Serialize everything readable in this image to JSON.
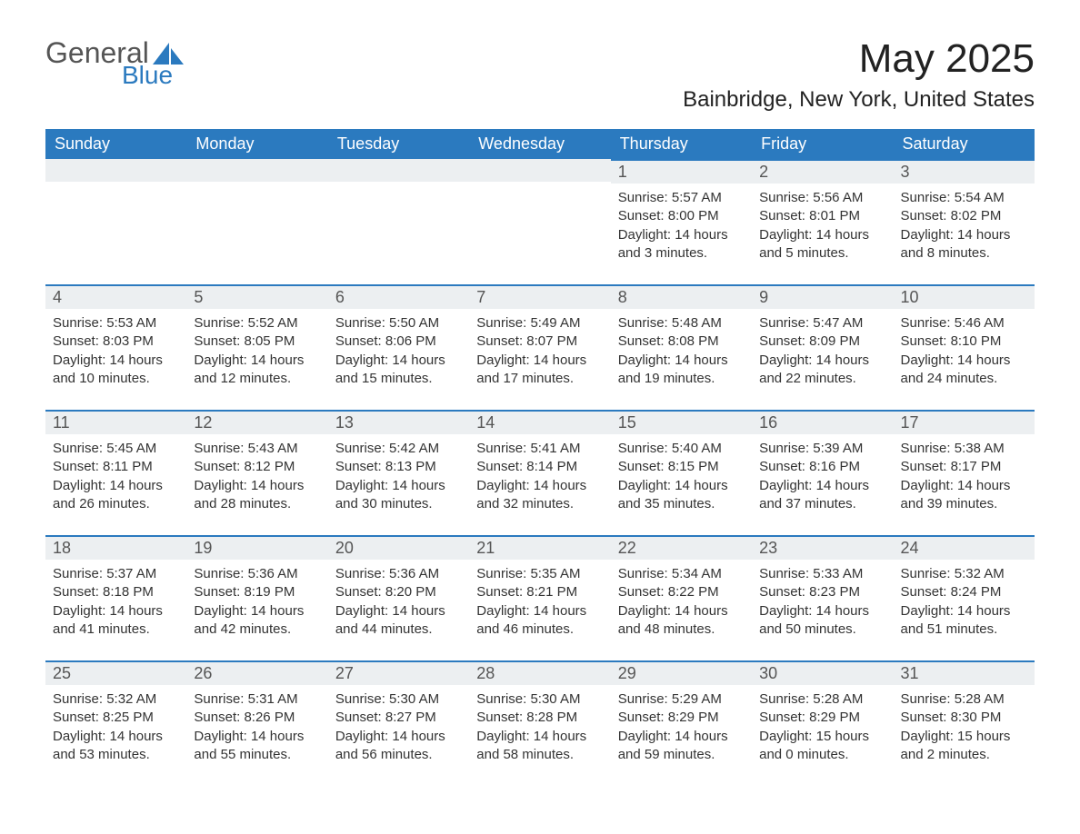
{
  "brand": {
    "word1": "General",
    "word2": "Blue",
    "logo_color": "#2b7abf"
  },
  "title": "May 2025",
  "location": "Bainbridge, New York, United States",
  "colors": {
    "header_bg": "#2b7abf",
    "header_text": "#ffffff",
    "daynum_bg": "#eceff1",
    "text": "#333333",
    "page_bg": "#ffffff",
    "row_divider": "#2b7abf"
  },
  "weekdays": [
    "Sunday",
    "Monday",
    "Tuesday",
    "Wednesday",
    "Thursday",
    "Friday",
    "Saturday"
  ],
  "weeks": [
    [
      null,
      null,
      null,
      null,
      {
        "day": "1",
        "sunrise": "Sunrise: 5:57 AM",
        "sunset": "Sunset: 8:00 PM",
        "daylight": "Daylight: 14 hours and 3 minutes."
      },
      {
        "day": "2",
        "sunrise": "Sunrise: 5:56 AM",
        "sunset": "Sunset: 8:01 PM",
        "daylight": "Daylight: 14 hours and 5 minutes."
      },
      {
        "day": "3",
        "sunrise": "Sunrise: 5:54 AM",
        "sunset": "Sunset: 8:02 PM",
        "daylight": "Daylight: 14 hours and 8 minutes."
      }
    ],
    [
      {
        "day": "4",
        "sunrise": "Sunrise: 5:53 AM",
        "sunset": "Sunset: 8:03 PM",
        "daylight": "Daylight: 14 hours and 10 minutes."
      },
      {
        "day": "5",
        "sunrise": "Sunrise: 5:52 AM",
        "sunset": "Sunset: 8:05 PM",
        "daylight": "Daylight: 14 hours and 12 minutes."
      },
      {
        "day": "6",
        "sunrise": "Sunrise: 5:50 AM",
        "sunset": "Sunset: 8:06 PM",
        "daylight": "Daylight: 14 hours and 15 minutes."
      },
      {
        "day": "7",
        "sunrise": "Sunrise: 5:49 AM",
        "sunset": "Sunset: 8:07 PM",
        "daylight": "Daylight: 14 hours and 17 minutes."
      },
      {
        "day": "8",
        "sunrise": "Sunrise: 5:48 AM",
        "sunset": "Sunset: 8:08 PM",
        "daylight": "Daylight: 14 hours and 19 minutes."
      },
      {
        "day": "9",
        "sunrise": "Sunrise: 5:47 AM",
        "sunset": "Sunset: 8:09 PM",
        "daylight": "Daylight: 14 hours and 22 minutes."
      },
      {
        "day": "10",
        "sunrise": "Sunrise: 5:46 AM",
        "sunset": "Sunset: 8:10 PM",
        "daylight": "Daylight: 14 hours and 24 minutes."
      }
    ],
    [
      {
        "day": "11",
        "sunrise": "Sunrise: 5:45 AM",
        "sunset": "Sunset: 8:11 PM",
        "daylight": "Daylight: 14 hours and 26 minutes."
      },
      {
        "day": "12",
        "sunrise": "Sunrise: 5:43 AM",
        "sunset": "Sunset: 8:12 PM",
        "daylight": "Daylight: 14 hours and 28 minutes."
      },
      {
        "day": "13",
        "sunrise": "Sunrise: 5:42 AM",
        "sunset": "Sunset: 8:13 PM",
        "daylight": "Daylight: 14 hours and 30 minutes."
      },
      {
        "day": "14",
        "sunrise": "Sunrise: 5:41 AM",
        "sunset": "Sunset: 8:14 PM",
        "daylight": "Daylight: 14 hours and 32 minutes."
      },
      {
        "day": "15",
        "sunrise": "Sunrise: 5:40 AM",
        "sunset": "Sunset: 8:15 PM",
        "daylight": "Daylight: 14 hours and 35 minutes."
      },
      {
        "day": "16",
        "sunrise": "Sunrise: 5:39 AM",
        "sunset": "Sunset: 8:16 PM",
        "daylight": "Daylight: 14 hours and 37 minutes."
      },
      {
        "day": "17",
        "sunrise": "Sunrise: 5:38 AM",
        "sunset": "Sunset: 8:17 PM",
        "daylight": "Daylight: 14 hours and 39 minutes."
      }
    ],
    [
      {
        "day": "18",
        "sunrise": "Sunrise: 5:37 AM",
        "sunset": "Sunset: 8:18 PM",
        "daylight": "Daylight: 14 hours and 41 minutes."
      },
      {
        "day": "19",
        "sunrise": "Sunrise: 5:36 AM",
        "sunset": "Sunset: 8:19 PM",
        "daylight": "Daylight: 14 hours and 42 minutes."
      },
      {
        "day": "20",
        "sunrise": "Sunrise: 5:36 AM",
        "sunset": "Sunset: 8:20 PM",
        "daylight": "Daylight: 14 hours and 44 minutes."
      },
      {
        "day": "21",
        "sunrise": "Sunrise: 5:35 AM",
        "sunset": "Sunset: 8:21 PM",
        "daylight": "Daylight: 14 hours and 46 minutes."
      },
      {
        "day": "22",
        "sunrise": "Sunrise: 5:34 AM",
        "sunset": "Sunset: 8:22 PM",
        "daylight": "Daylight: 14 hours and 48 minutes."
      },
      {
        "day": "23",
        "sunrise": "Sunrise: 5:33 AM",
        "sunset": "Sunset: 8:23 PM",
        "daylight": "Daylight: 14 hours and 50 minutes."
      },
      {
        "day": "24",
        "sunrise": "Sunrise: 5:32 AM",
        "sunset": "Sunset: 8:24 PM",
        "daylight": "Daylight: 14 hours and 51 minutes."
      }
    ],
    [
      {
        "day": "25",
        "sunrise": "Sunrise: 5:32 AM",
        "sunset": "Sunset: 8:25 PM",
        "daylight": "Daylight: 14 hours and 53 minutes."
      },
      {
        "day": "26",
        "sunrise": "Sunrise: 5:31 AM",
        "sunset": "Sunset: 8:26 PM",
        "daylight": "Daylight: 14 hours and 55 minutes."
      },
      {
        "day": "27",
        "sunrise": "Sunrise: 5:30 AM",
        "sunset": "Sunset: 8:27 PM",
        "daylight": "Daylight: 14 hours and 56 minutes."
      },
      {
        "day": "28",
        "sunrise": "Sunrise: 5:30 AM",
        "sunset": "Sunset: 8:28 PM",
        "daylight": "Daylight: 14 hours and 58 minutes."
      },
      {
        "day": "29",
        "sunrise": "Sunrise: 5:29 AM",
        "sunset": "Sunset: 8:29 PM",
        "daylight": "Daylight: 14 hours and 59 minutes."
      },
      {
        "day": "30",
        "sunrise": "Sunrise: 5:28 AM",
        "sunset": "Sunset: 8:29 PM",
        "daylight": "Daylight: 15 hours and 0 minutes."
      },
      {
        "day": "31",
        "sunrise": "Sunrise: 5:28 AM",
        "sunset": "Sunset: 8:30 PM",
        "daylight": "Daylight: 15 hours and 2 minutes."
      }
    ]
  ]
}
